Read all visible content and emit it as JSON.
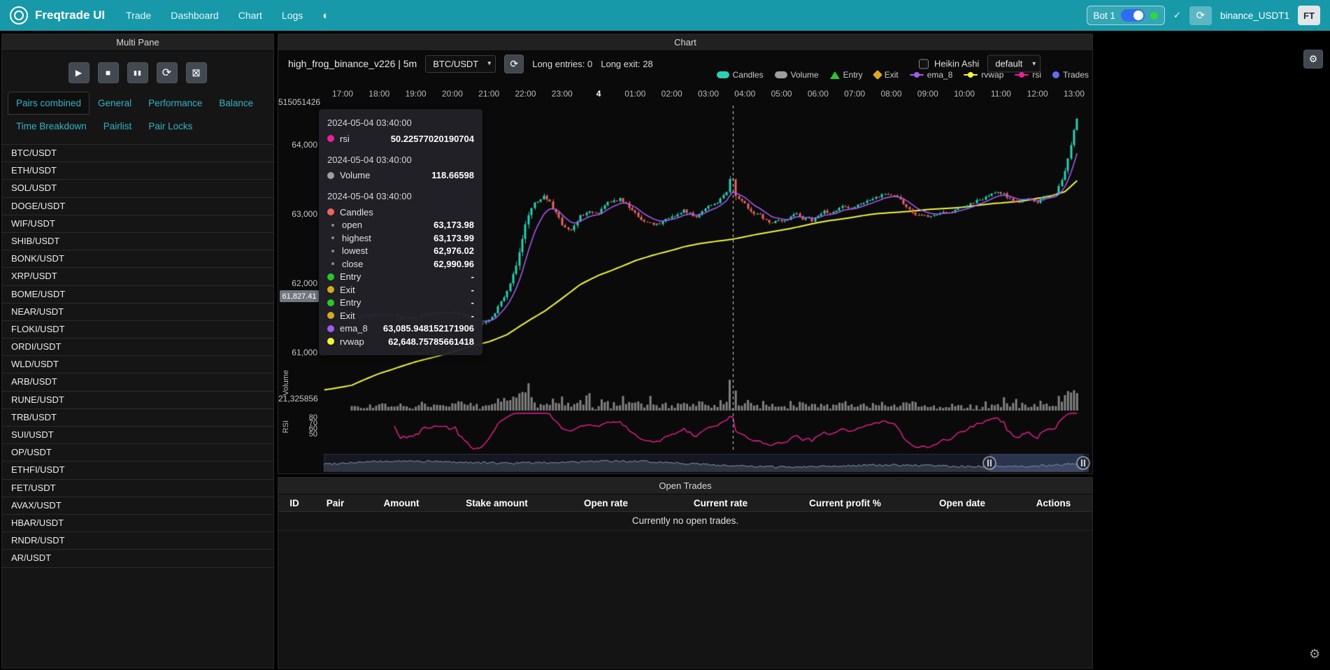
{
  "colors": {
    "navbar": "#1799a9",
    "candle_up": "#2ad1b4",
    "candle_down": "#f2635e",
    "ema": "#a35af0",
    "rvwap": "#f4f63e",
    "rsi": "#ee1f97",
    "volume": "#9e9e9e",
    "entry": "#2dc42d",
    "exit": "#d7a821",
    "trades": "#5f6ef2"
  },
  "icons": {
    "theme": "◐",
    "refresh": "⟳",
    "check": "✓",
    "gear": "⚙",
    "chevron": "▾"
  },
  "navbar": {
    "brand": "Freqtrade UI",
    "links": [
      "Trade",
      "Dashboard",
      "Chart",
      "Logs"
    ],
    "bot_label": "Bot 1",
    "bot_name": "binance_USDT1",
    "avatar": "FT"
  },
  "sidebar": {
    "title": "Multi Pane",
    "controls": [
      {
        "name": "start",
        "glyph": "▶",
        "fs": 12
      },
      {
        "name": "stop",
        "glyph": "■",
        "fs": 12
      },
      {
        "name": "pause",
        "glyph": "▮▮",
        "fs": 9
      },
      {
        "name": "reload-config",
        "glyph": "⟳",
        "fs": 16
      },
      {
        "name": "cancel-open-orders",
        "glyph": "⊠",
        "fs": 15
      }
    ],
    "tabs_row1": [
      "Pairs combined",
      "General",
      "Performance",
      "Balance"
    ],
    "tabs_row2": [
      "Time Breakdown",
      "Pairlist",
      "Pair Locks"
    ],
    "active_tab": "Pairs combined",
    "pairs": [
      "BTC/USDT",
      "ETH/USDT",
      "SOL/USDT",
      "DOGE/USDT",
      "WIF/USDT",
      "SHIB/USDT",
      "BONK/USDT",
      "XRP/USDT",
      "BOME/USDT",
      "NEAR/USDT",
      "FLOKI/USDT",
      "ORDI/USDT",
      "WLD/USDT",
      "ARB/USDT",
      "RUNE/USDT",
      "TRB/USDT",
      "SUI/USDT",
      "OP/USDT",
      "ETHFI/USDT",
      "FET/USDT",
      "AVAX/USDT",
      "HBAR/USDT",
      "RNDR/USDT",
      "AR/USDT"
    ]
  },
  "chart": {
    "panel_title": "Chart",
    "strategy": "high_frog_binance_v226 | 5m",
    "pair": "BTC/USDT",
    "long_entries": "Long entries: 0",
    "long_exit": "Long exit: 28",
    "heikin_ashi": "Heikin Ashi",
    "plot_config": "default",
    "axis_label_volume": "Volume",
    "axis_label_rsi": "RSI",
    "price_tag": {
      "label": "61,827.41",
      "value": 61827.41
    },
    "legend": [
      {
        "label": "Candles",
        "type": "roundrect",
        "color": "#2ad1b4"
      },
      {
        "label": "Volume",
        "type": "roundrect",
        "color": "#9e9e9e"
      },
      {
        "label": "Entry",
        "type": "triangle",
        "color": "#2dc42d"
      },
      {
        "label": "Exit",
        "type": "diamond",
        "color": "#d7a821"
      },
      {
        "label": "ema_8",
        "type": "linedot",
        "color": "#a35af0"
      },
      {
        "label": "rvwap",
        "type": "linedot",
        "color": "#f4f63e"
      },
      {
        "label": "rsi",
        "type": "linedot",
        "color": "#ee1f97"
      },
      {
        "label": "Trades",
        "type": "circle",
        "color": "#5f6ef2"
      }
    ],
    "tooltip": {
      "sections": [
        {
          "time": "2024-05-04 03:40:00",
          "rows": [
            {
              "label": "rsi",
              "value": "50.22577020190704",
              "color": "#ee1f97"
            }
          ]
        },
        {
          "time": "2024-05-04 03:40:00",
          "rows": [
            {
              "label": "Volume",
              "value": "118.66598",
              "color": "#9e9e9e"
            }
          ]
        },
        {
          "time": "2024-05-04 03:40:00",
          "rows": [
            {
              "label": "Candles",
              "value": "",
              "color": "#f2635e"
            },
            {
              "label": "open",
              "value": "63,173.98",
              "sub": true
            },
            {
              "label": "highest",
              "value": "63,173.99",
              "sub": true
            },
            {
              "label": "lowest",
              "value": "62,976.02",
              "sub": true
            },
            {
              "label": "close",
              "value": "62,990.96",
              "sub": true
            },
            {
              "label": "Entry",
              "value": "-",
              "color": "#2dc42d"
            },
            {
              "label": "Exit",
              "value": "-",
              "color": "#d7a821"
            },
            {
              "label": "Entry",
              "value": "-",
              "color": "#2dc42d"
            },
            {
              "label": "Exit",
              "value": "-",
              "color": "#d7a821"
            },
            {
              "label": "ema_8",
              "value": "63,085.948152171906",
              "color": "#a35af0"
            },
            {
              "label": "rvwap",
              "value": "62,648.75785661418",
              "color": "#f4f63e"
            }
          ]
        }
      ]
    }
  },
  "chart_data": {
    "type": "candlestick",
    "timeframe": "5m",
    "t_start": 15,
    "t_end": 1207,
    "crosshair_t": 640,
    "crosshair_time": "2024-05-04 03:40:00",
    "x_ticks": [
      "17:00",
      "18:00",
      "19:00",
      "20:00",
      "21:00",
      "22:00",
      "23:00",
      "4",
      "01:00",
      "02:00",
      "03:00",
      "04:00",
      "05:00",
      "06:00",
      "07:00",
      "08:00",
      "09:00",
      "10:00",
      "11:00",
      "12:00",
      "13:00"
    ],
    "y_axis_top_label": "515051426",
    "volume_axis_max_label": "21,325856",
    "price_ticks": [
      {
        "label": "64,000",
        "value": 64000
      },
      {
        "label": "63,000",
        "value": 63000
      },
      {
        "label": "62,000",
        "value": 62000
      },
      {
        "label": "61,000",
        "value": 61000
      }
    ],
    "rsi_ticks": [
      {
        "label": "80",
        "value": 80
      },
      {
        "label": "70",
        "value": 70
      },
      {
        "label": "60",
        "value": 60
      },
      {
        "label": "50",
        "value": 50
      }
    ],
    "series": [
      "Candles",
      "Volume",
      "Entry",
      "Exit",
      "ema_8",
      "rvwap",
      "rsi",
      "Trades"
    ],
    "price_anchors": [
      [
        15,
        61520
      ],
      [
        60,
        61560
      ],
      [
        100,
        61500
      ],
      [
        140,
        61580
      ],
      [
        180,
        61620
      ],
      [
        215,
        61420
      ],
      [
        240,
        61490
      ],
      [
        252,
        61610
      ],
      [
        264,
        61800
      ],
      [
        276,
        62060
      ],
      [
        288,
        62380
      ],
      [
        300,
        62900
      ],
      [
        312,
        63130
      ],
      [
        330,
        63310
      ],
      [
        342,
        63150
      ],
      [
        360,
        62850
      ],
      [
        372,
        62760
      ],
      [
        390,
        62980
      ],
      [
        405,
        63060
      ],
      [
        420,
        63030
      ],
      [
        440,
        63190
      ],
      [
        455,
        63240
      ],
      [
        470,
        63120
      ],
      [
        490,
        62910
      ],
      [
        510,
        62850
      ],
      [
        540,
        62950
      ],
      [
        560,
        63060
      ],
      [
        580,
        62980
      ],
      [
        600,
        63090
      ],
      [
        615,
        63170
      ],
      [
        630,
        63290
      ],
      [
        638,
        63600
      ],
      [
        645,
        63260
      ],
      [
        660,
        63130
      ],
      [
        680,
        63000
      ],
      [
        700,
        62900
      ],
      [
        720,
        62930
      ],
      [
        745,
        62980
      ],
      [
        770,
        62910
      ],
      [
        790,
        63020
      ],
      [
        810,
        63070
      ],
      [
        830,
        63110
      ],
      [
        850,
        63160
      ],
      [
        870,
        63230
      ],
      [
        890,
        63290
      ],
      [
        905,
        63310
      ],
      [
        920,
        63150
      ],
      [
        940,
        63010
      ],
      [
        960,
        62960
      ],
      [
        980,
        63050
      ],
      [
        1000,
        63080
      ],
      [
        1020,
        63120
      ],
      [
        1040,
        63200
      ],
      [
        1060,
        63300
      ],
      [
        1075,
        63330
      ],
      [
        1090,
        63260
      ],
      [
        1110,
        63200
      ],
      [
        1125,
        63240
      ],
      [
        1140,
        63210
      ],
      [
        1155,
        63290
      ],
      [
        1170,
        63330
      ],
      [
        1182,
        63520
      ],
      [
        1192,
        63900
      ],
      [
        1200,
        64260
      ],
      [
        1207,
        64430
      ]
    ],
    "rvwap_anchors": [
      [
        -30,
        60480
      ],
      [
        15,
        60530
      ],
      [
        60,
        60700
      ],
      [
        120,
        60870
      ],
      [
        180,
        61030
      ],
      [
        240,
        61170
      ],
      [
        270,
        61270
      ],
      [
        300,
        61430
      ],
      [
        330,
        61590
      ],
      [
        360,
        61790
      ],
      [
        390,
        61990
      ],
      [
        420,
        62130
      ],
      [
        450,
        62240
      ],
      [
        480,
        62340
      ],
      [
        520,
        62440
      ],
      [
        560,
        62530
      ],
      [
        600,
        62590
      ],
      [
        640,
        62650
      ],
      [
        680,
        62720
      ],
      [
        720,
        62790
      ],
      [
        760,
        62850
      ],
      [
        800,
        62910
      ],
      [
        840,
        62960
      ],
      [
        880,
        63010
      ],
      [
        920,
        63050
      ],
      [
        960,
        63080
      ],
      [
        1000,
        63105
      ],
      [
        1040,
        63130
      ],
      [
        1080,
        63160
      ],
      [
        1120,
        63200
      ],
      [
        1160,
        63260
      ],
      [
        1185,
        63340
      ],
      [
        1207,
        63520
      ]
    ]
  },
  "trades": {
    "panel_title": "Open Trades",
    "columns": [
      "ID",
      "Pair",
      "Amount",
      "Stake amount",
      "Open rate",
      "Current rate",
      "Current profit %",
      "Open date",
      "Actions"
    ],
    "empty": "Currently no open trades."
  }
}
